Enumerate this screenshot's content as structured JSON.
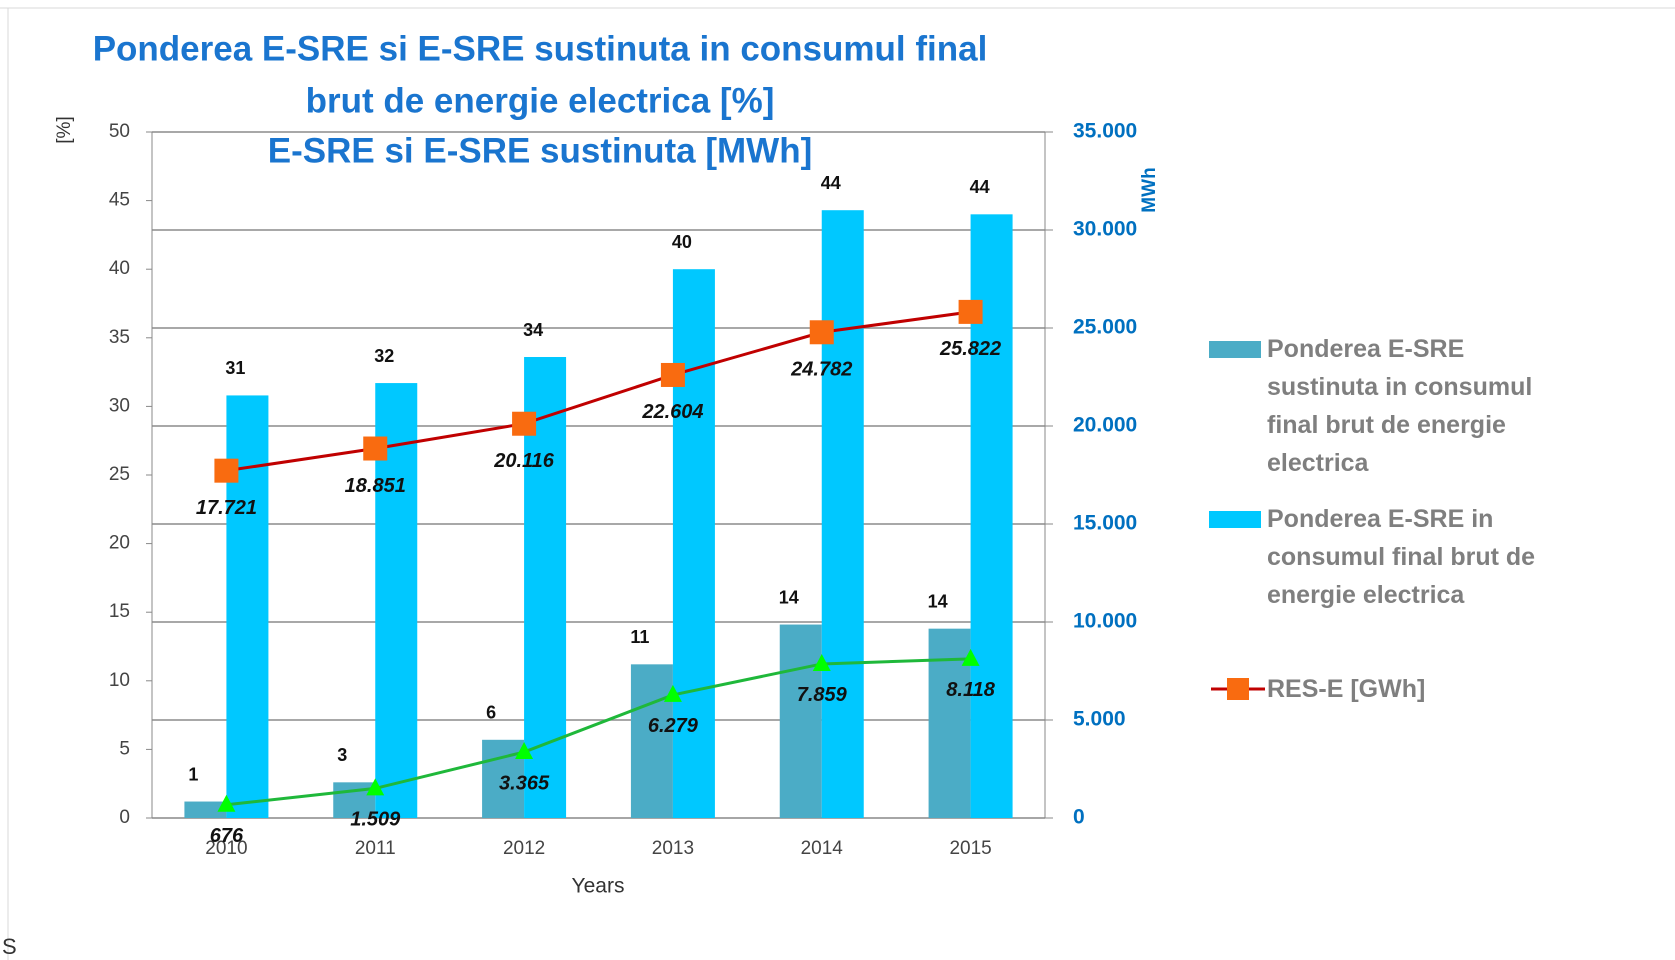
{
  "chart_data": {
    "type": "bar_line",
    "title": [
      "Ponderea E-SRE si E-SRE sustinuta in consumul final",
      "brut de energie electrica [%]",
      "E-SRE si E-SRE sustinuta [MWh]"
    ],
    "y_label": "[%]",
    "x_label": "Years",
    "y2_label": "MWh",
    "footnote": "S",
    "categories": [
      "2010",
      "2011",
      "2012",
      "2013",
      "2014",
      "2015"
    ],
    "ylim": [
      0,
      50
    ],
    "yticks": [
      0,
      5,
      10,
      15,
      20,
      25,
      30,
      35,
      40,
      45,
      50
    ],
    "y2lim": [
      0,
      35000
    ],
    "y2ticks": [
      {
        "value": 0,
        "label": "0"
      },
      {
        "value": 5000,
        "label": "5.000"
      },
      {
        "value": 10000,
        "label": "10.000"
      },
      {
        "value": 15000,
        "label": "15.000"
      },
      {
        "value": 20000,
        "label": "20.000"
      },
      {
        "value": 25000,
        "label": "25.000"
      },
      {
        "value": 30000,
        "label": "30.000"
      },
      {
        "value": 35000,
        "label": "35.000"
      }
    ],
    "grid": "y2",
    "legend": "right",
    "series": [
      {
        "name": "Ponderea E-SRE sustinuta  in consumul final brut de energie electrica",
        "kind": "bar",
        "color": "#4bacc6",
        "values": [
          1.2,
          2.6,
          5.7,
          11.2,
          14.1,
          13.8
        ],
        "value_labels": [
          "1",
          "3",
          "6",
          "11",
          "14",
          "14"
        ]
      },
      {
        "name": "Ponderea E-SRE in consumul final brut de energie electrica",
        "kind": "bar",
        "color": "#00c8ff",
        "values": [
          30.8,
          31.7,
          33.6,
          40,
          44.3,
          44
        ],
        "value_labels": [
          "31",
          "32",
          "34",
          "40",
          "44",
          "44"
        ]
      },
      {
        "name": "RES-E [GWh]",
        "kind": "line",
        "axis": "y2",
        "color": "#c00000",
        "marker_color": "#f96b10",
        "marker": "square",
        "values": [
          17721,
          18851,
          20116,
          22604,
          24782,
          25822
        ],
        "value_labels": [
          "17.721",
          "18.851",
          "20.116",
          "22.604",
          "24.782",
          "25.822"
        ]
      },
      {
        "kind": "line",
        "axis": "y2",
        "color": "#1fb83a",
        "marker_color": "#00ff00",
        "marker": "triangle",
        "values": [
          676,
          1509,
          3365,
          6279,
          7859,
          8118
        ],
        "value_labels": [
          "676",
          "1.509",
          "3.365",
          "6.279",
          "7.859",
          "8.118"
        ]
      }
    ]
  }
}
